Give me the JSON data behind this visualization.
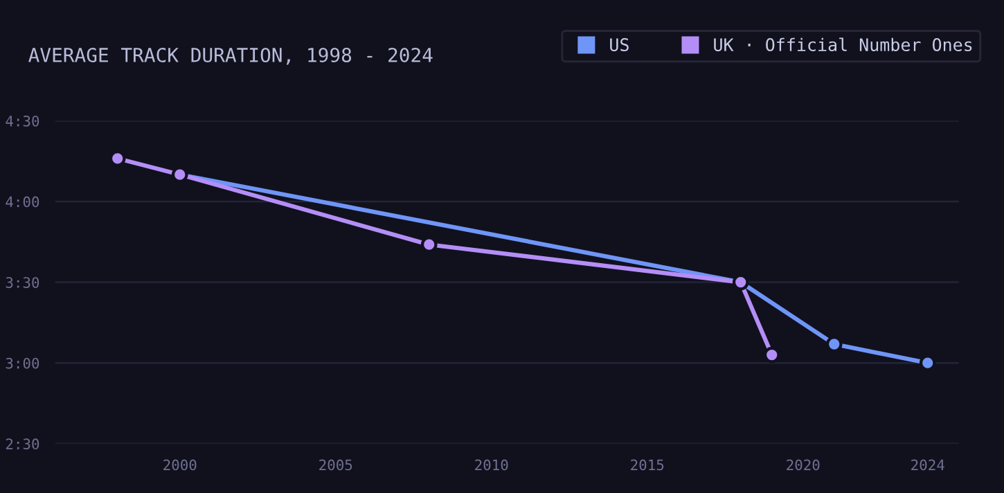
{
  "chart_data": {
    "type": "line",
    "title": "AVERAGE TRACK DURATION, 1998 - 2024",
    "series": [
      {
        "name": "US",
        "color": "#6f95f7",
        "x": [
          2000,
          2018,
          2021,
          2024
        ],
        "values": [
          250,
          210,
          187,
          180
        ]
      },
      {
        "name": "UK · Official Number Ones",
        "color": "#b48ef7",
        "x": [
          1998,
          2000,
          2008,
          2018,
          2019
        ],
        "values": [
          256,
          250,
          224,
          210,
          183
        ]
      }
    ],
    "xlim": [
      1996,
      2025
    ],
    "xticks": [
      2000,
      2005,
      2010,
      2015,
      2020,
      2024
    ],
    "ylim": [
      150,
      270
    ],
    "yticks": [
      {
        "value": 150,
        "label": "2:30"
      },
      {
        "value": 180,
        "label": "3:00"
      },
      {
        "value": 210,
        "label": "3:30"
      },
      {
        "value": 240,
        "label": "4:00"
      },
      {
        "value": 270,
        "label": "4:30"
      }
    ],
    "grid": "y",
    "legend": "top right",
    "marker": "circle",
    "line_style": "solid"
  }
}
